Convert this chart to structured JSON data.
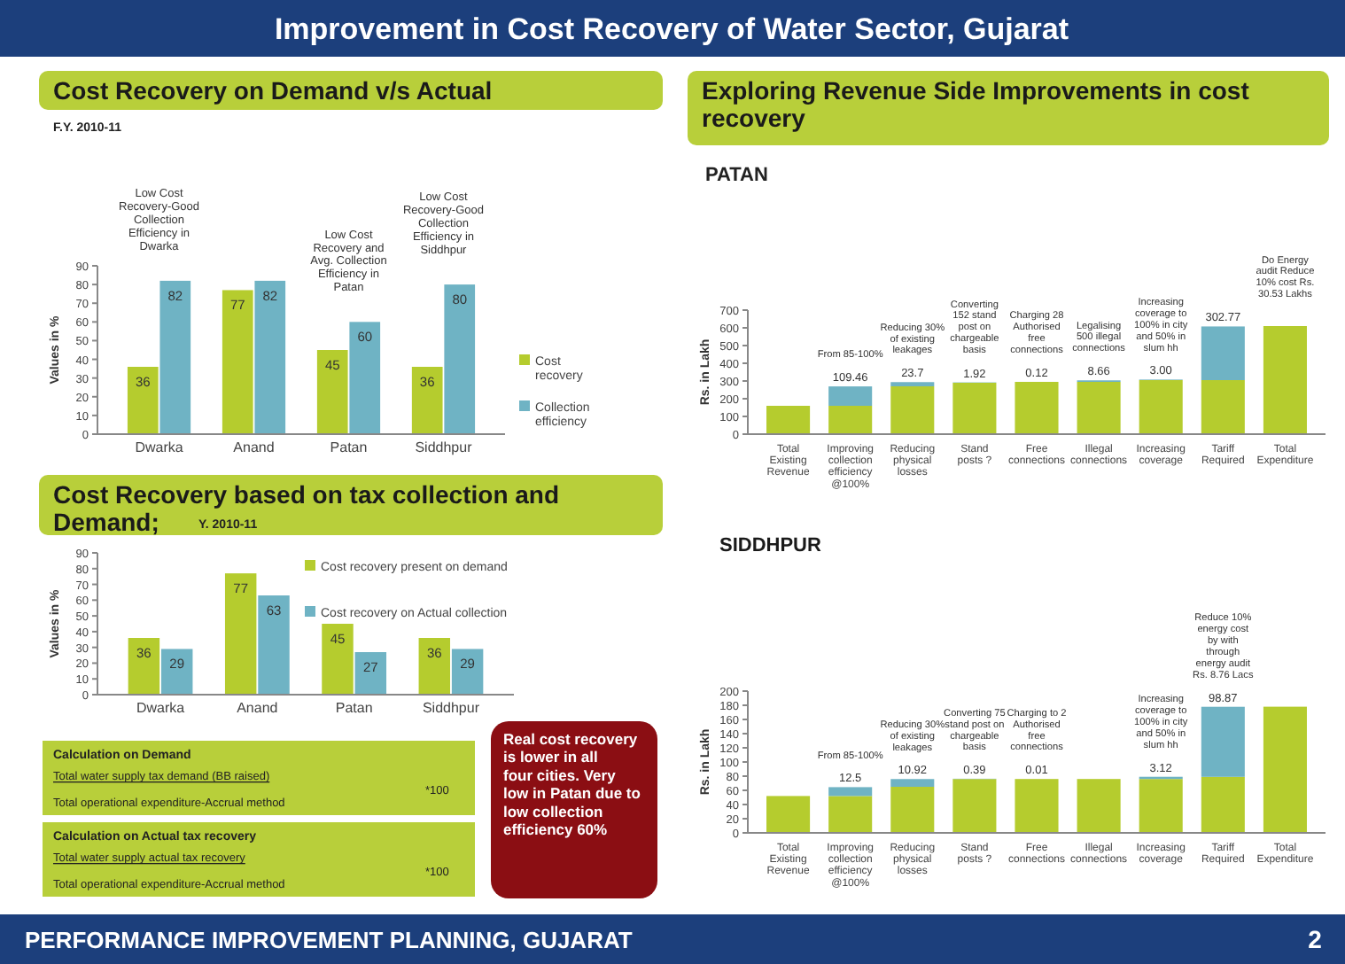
{
  "chart_data": [
    {
      "type": "bar",
      "title": "Cost Recovery on Demand v/s Actual",
      "subtitle": "F.Y. 2010-11",
      "ylabel": "Values in %",
      "categories": [
        "Dwarka",
        "Anand",
        "Patan",
        "Siddhpur"
      ],
      "series": [
        {
          "name": "Cost recovery",
          "color": "#b5cc2e",
          "values": [
            36,
            77,
            45,
            36
          ]
        },
        {
          "name": "Collection efficiency",
          "color": "#6fb3c4",
          "values": [
            82,
            82,
            60,
            80
          ]
        }
      ],
      "ylim": [
        0,
        90
      ],
      "yticks": [
        0,
        10,
        20,
        30,
        40,
        50,
        60,
        70,
        80,
        90
      ],
      "data_labels": true,
      "legend": "right",
      "grid": false,
      "annotations": [
        {
          "text": "Low Cost Recovery-Good Collection Efficiency in Dwarka",
          "x": "Dwarka",
          "y": 82
        },
        {
          "text": "Low Cost Recovery and Avg. Collection Efficiency in Patan",
          "x": "Patan",
          "y": 60
        },
        {
          "text": "Low Cost Recovery-Good Collection Efficiency in Siddhpur",
          "x": "Siddhpur",
          "y": 80
        }
      ]
    },
    {
      "type": "bar",
      "title": "Cost Recovery based on tax collection and Demand;",
      "subtitle": "Y. 2010-11",
      "ylabel": "Values in %",
      "categories": [
        "Dwarka",
        "Anand",
        "Patan",
        "Siddhpur"
      ],
      "series": [
        {
          "name": "Cost recovery present on demand",
          "color": "#b5cc2e",
          "values": [
            36,
            77,
            45,
            36
          ]
        },
        {
          "name": "Cost recovery on Actual collection",
          "color": "#6fb3c4",
          "values": [
            29,
            63,
            27,
            29
          ]
        }
      ],
      "ylim": [
        0,
        90
      ],
      "yticks": [
        0,
        10,
        20,
        30,
        40,
        50,
        60,
        70,
        80,
        90
      ],
      "data_labels": true,
      "legend": "top right",
      "grid": false
    },
    {
      "type": "bar",
      "stacked": true,
      "title": "Exploring Revenue Side Improvements in cost recovery",
      "subtitle": "PATAN",
      "ylabel": "Rs. in Lakh",
      "categories": [
        "Total Existing Revenue",
        "Improving collection efficiency @100%",
        "Reducing physical losses",
        "Stand posts ?",
        "Free connections",
        "Illegal connections",
        "Increasing coverage",
        "Tariff Required",
        "Total Expenditure"
      ],
      "series": [
        {
          "color": "#b5cc2e",
          "values": [
            160,
            160,
            270,
            290,
            295,
            295,
            305,
            305,
            610
          ]
        },
        {
          "color": "#6fb3c4",
          "values": [
            null,
            109.46,
            23.7,
            1.92,
            0.12,
            8.66,
            3.0,
            302.77,
            null
          ],
          "value_labels": [
            null,
            "109.46",
            "23.7",
            "1.92",
            "0.12",
            "8.66",
            "3.00",
            "302.77",
            null
          ]
        }
      ],
      "ylim": [
        0,
        700
      ],
      "yticks": [
        0,
        100,
        200,
        300,
        400,
        500,
        600,
        700
      ],
      "grid": false,
      "annotations": [
        {
          "text": "From 85-100%",
          "x": "Improving collection efficiency @100%",
          "y": 269.46
        },
        {
          "text": "Reducing 30% of existing leakages",
          "x": "Reducing physical losses",
          "y": 293.16
        },
        {
          "text": "Converting 152 stand post on chargeable basis",
          "x": "Stand posts ?",
          "y": 295.08
        },
        {
          "text": "Charging 28 Authorised free connections",
          "x": "Free connections",
          "y": 295.2
        },
        {
          "text": "Legalising 500 illegal connections",
          "x": "Illegal connections",
          "y": 303.86
        },
        {
          "text": "Increasing coverage to 100% in city and 50% in slum hh",
          "x": "Increasing coverage",
          "y": 306.86
        },
        {
          "text": "Do Energy audit Reduce 10% cost Rs. 30.53 Lakhs",
          "x": "Total Expenditure",
          "y": 609.63
        }
      ]
    },
    {
      "type": "bar",
      "stacked": true,
      "title": "SIDDHPUR",
      "ylabel": "Rs. in Lakh",
      "categories": [
        "Total Existing Revenue",
        "Improving collection efficiency @100%",
        "Reducing physical losses",
        "Stand posts ?",
        "Free connections",
        "Illegal connections",
        "Increasing coverage",
        "Tariff Required",
        "Total Expenditure"
      ],
      "series": [
        {
          "color": "#b5cc2e",
          "values": [
            52,
            52,
            65,
            76,
            76,
            76,
            76,
            79,
            178
          ]
        },
        {
          "color": "#6fb3c4",
          "values": [
            null,
            12.5,
            10.92,
            0.39,
            0.01,
            null,
            3.12,
            98.87,
            null
          ],
          "value_labels": [
            null,
            "12.5",
            "10.92",
            "0.39",
            "0.01",
            null,
            "3.12",
            "98.87",
            null
          ]
        }
      ],
      "ylim": [
        0,
        200
      ],
      "yticks": [
        0,
        20,
        40,
        60,
        80,
        100,
        120,
        140,
        160,
        180,
        200
      ],
      "grid": false,
      "annotations": [
        {
          "text": "From 85-100%",
          "x": "Improving collection efficiency @100%",
          "y": 64.5
        },
        {
          "text": "Reducing 30% of existing leakages",
          "x": "Reducing physical losses",
          "y": 75.42
        },
        {
          "text": "Converting 75 stand post on chargeable basis",
          "x": "Stand posts ?",
          "y": 75.81
        },
        {
          "text": "Charging to 2 Authorised free connections",
          "x": "Free connections",
          "y": 75.82
        },
        {
          "text": "Increasing coverage to 100% in city and 50% in slum hh",
          "x": "Increasing coverage",
          "y": 78.94
        },
        {
          "text": "Reduce 10% energy cost by with through energy audit Rs. 8.76 Lacs",
          "x": "Tariff Required",
          "y": 177.81
        }
      ]
    },
    {
      "type": "other",
      "title": "Improvement in Cost Recovery of Water Sector, Gujarat",
      "annotations": [
        "Calculation on Demand",
        "Total water supply tax demand (BB raised)",
        "Total operational expenditure-Accrual method",
        "*100",
        "Calculation on Actual tax recovery",
        "Total water supply actual tax recovery",
        "Total operational expenditure-Accrual method",
        "*100",
        "Real cost recovery is lower in all four cities. Very low in Patan due to low collection efficiency 60%",
        "PERFORMANCE IMPROVEMENT PLANNING, GUJARAT",
        "2"
      ]
    }
  ]
}
